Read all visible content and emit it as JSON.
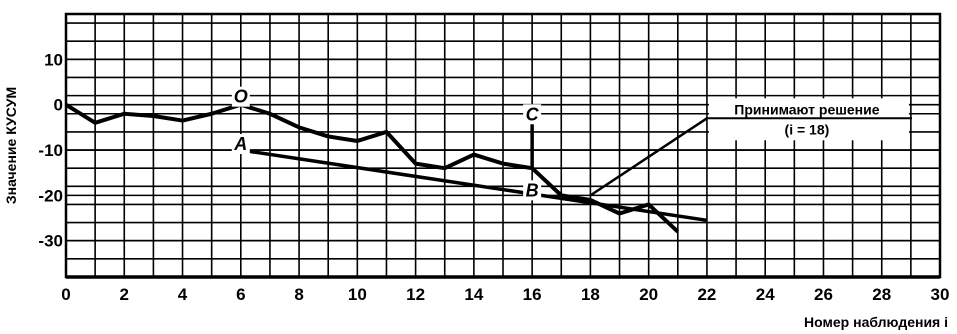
{
  "chart_data": {
    "type": "line",
    "xlabel": "Номер наблюдения i",
    "ylabel": "Значение КУСУМ",
    "xlim": [
      0,
      30
    ],
    "ylim": [
      -38,
      20
    ],
    "x_ticks": [
      0,
      2,
      4,
      6,
      8,
      10,
      12,
      14,
      16,
      18,
      20,
      22,
      24,
      26,
      28,
      30
    ],
    "y_ticks": [
      10,
      0,
      -10,
      -20,
      -30
    ],
    "grid": true,
    "series": [
      {
        "x": [
          0,
          1,
          2,
          3,
          4,
          5,
          6,
          7,
          8,
          9,
          10,
          11,
          12,
          13,
          14,
          15,
          16,
          17,
          18,
          19,
          20,
          21
        ],
        "y": [
          0,
          -4,
          -2,
          -2.5,
          -3.5,
          -2,
          0,
          -2,
          -5,
          -7,
          -8,
          -6,
          -13,
          -14,
          -11,
          -13,
          -14,
          -20,
          -21,
          -24,
          -22,
          -28
        ]
      }
    ],
    "v_mask": {
      "lower_arm": {
        "x": [
          6,
          22
        ],
        "y": [
          -10,
          -25.5
        ]
      },
      "decision_arm": {
        "x": [
          18,
          22
        ],
        "y": [
          -20,
          -3
        ]
      },
      "vertical": {
        "x": 16,
        "y": [
          -14,
          -3
        ]
      }
    },
    "point_labels": [
      {
        "text": "O",
        "x": 6,
        "y": 0
      },
      {
        "text": "C",
        "x": 16,
        "y": -3
      },
      {
        "text": "A",
        "x": 6,
        "y": -10
      },
      {
        "text": "B",
        "x": 16,
        "y": -18
      }
    ],
    "annotation": {
      "line1": "Принимают решение",
      "line2": "(i = 18)",
      "x": 22,
      "y": -3
    }
  }
}
